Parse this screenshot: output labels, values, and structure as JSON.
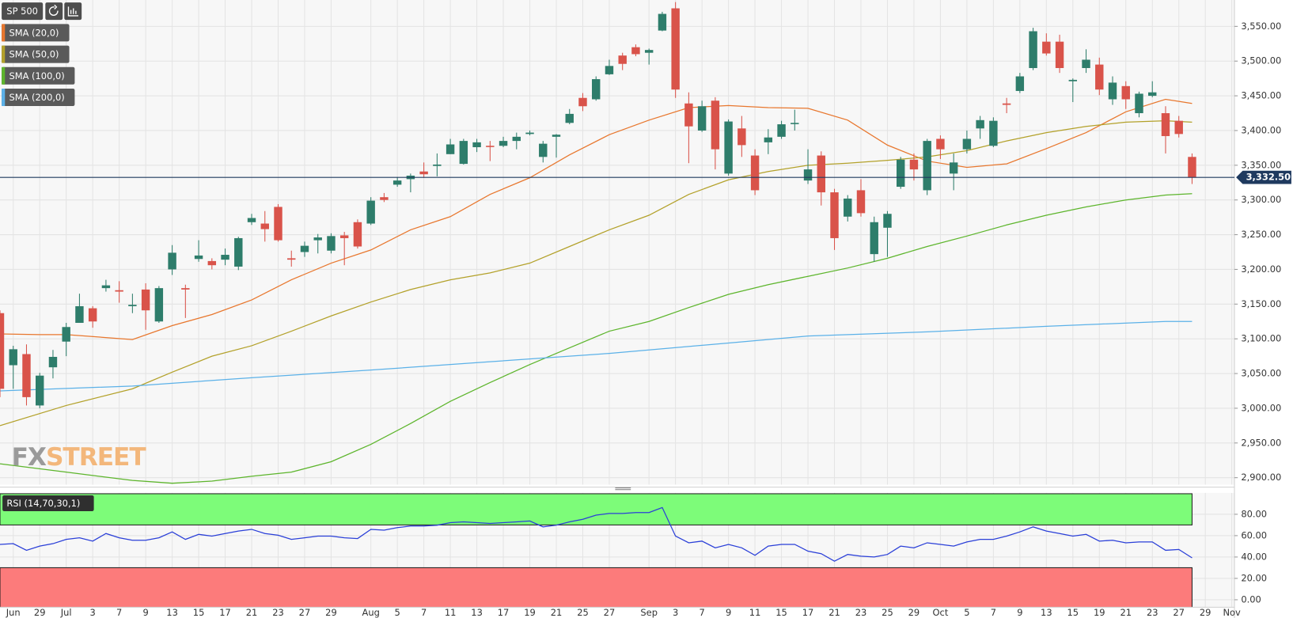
{
  "chart_data": [
    {
      "type": "candlestick",
      "title": "SP 500",
      "open": [
        3137,
        3062,
        3078,
        3004,
        3059,
        3096,
        3123,
        3144,
        3173,
        3170,
        3147,
        3171,
        3125,
        3200,
        3173,
        3215,
        3212,
        3214,
        3204,
        3268,
        3266,
        3290,
        3216,
        3225,
        3242,
        3227,
        3249,
        3268,
        3266,
        3304,
        3322,
        3330,
        3341,
        3349,
        3366,
        3352,
        3376,
        3378,
        3378,
        3385,
        3395,
        3362,
        3391,
        3411,
        3447,
        3445,
        3481,
        3508,
        3520,
        3512,
        3544,
        3576,
        3439,
        3400,
        3443,
        3338,
        3403,
        3364,
        3383,
        3391,
        3411,
        3328,
        3364,
        3311,
        3276,
        3314,
        3222,
        3260,
        3319,
        3358,
        3314,
        3388,
        3338,
        3373,
        3403,
        3378,
        3439,
        3457,
        3490,
        3528,
        3528,
        3471,
        3490,
        3495,
        3445,
        3464,
        3425,
        3450,
        3425,
        3414,
        3362
      ],
      "high": [
        3141,
        3090,
        3092,
        3051,
        3084,
        3123,
        3165,
        3147,
        3185,
        3183,
        3165,
        3180,
        3176,
        3235,
        3178,
        3242,
        3216,
        3230,
        3247,
        3280,
        3284,
        3294,
        3227,
        3240,
        3251,
        3252,
        3254,
        3272,
        3304,
        3310,
        3333,
        3338,
        3354,
        3367,
        3388,
        3388,
        3388,
        3385,
        3391,
        3397,
        3400,
        3385,
        3395,
        3431,
        3454,
        3478,
        3502,
        3512,
        3524,
        3518,
        3571,
        3585,
        3455,
        3443,
        3448,
        3416,
        3421,
        3373,
        3402,
        3414,
        3430,
        3373,
        3370,
        3316,
        3307,
        3330,
        3276,
        3284,
        3362,
        3367,
        3388,
        3393,
        3367,
        3400,
        3421,
        3419,
        3447,
        3483,
        3548,
        3540,
        3538,
        3475,
        3517,
        3505,
        3478,
        3471,
        3456,
        3471,
        3435,
        3421,
        3367
      ],
      "low": [
        3016,
        3028,
        3004,
        3000,
        3043,
        3075,
        3123,
        3116,
        3168,
        3152,
        3137,
        3113,
        3123,
        3192,
        3130,
        3211,
        3200,
        3206,
        3199,
        3264,
        3240,
        3240,
        3204,
        3218,
        3223,
        3223,
        3206,
        3230,
        3264,
        3297,
        3319,
        3311,
        3332,
        3334,
        3366,
        3351,
        3369,
        3356,
        3376,
        3373,
        3393,
        3354,
        3361,
        3409,
        3428,
        3443,
        3480,
        3487,
        3507,
        3495,
        3543,
        3447,
        3353,
        3398,
        3344,
        3335,
        3362,
        3307,
        3366,
        3388,
        3400,
        3323,
        3292,
        3228,
        3269,
        3276,
        3211,
        3218,
        3316,
        3328,
        3307,
        3359,
        3314,
        3367,
        3388,
        3376,
        3425,
        3454,
        3487,
        3508,
        3483,
        3441,
        3483,
        3451,
        3437,
        3431,
        3419,
        3448,
        3367,
        3390,
        3323
      ],
      "close": [
        3028,
        3085,
        3016,
        3047,
        3074,
        3117,
        3147,
        3125,
        3177,
        3168,
        3149,
        3141,
        3173,
        3224,
        3171,
        3220,
        3206,
        3221,
        3245,
        3274,
        3258,
        3242,
        3214,
        3234,
        3246,
        3248,
        3245,
        3233,
        3299,
        3300,
        3328,
        3335,
        3337,
        3351,
        3380,
        3385,
        3383,
        3377,
        3385,
        3391,
        3397,
        3381,
        3394,
        3424,
        3435,
        3474,
        3493,
        3496,
        3510,
        3516,
        3568,
        3459,
        3406,
        3435,
        3373,
        3413,
        3379,
        3314,
        3390,
        3409,
        3411,
        3344,
        3311,
        3245,
        3302,
        3281,
        3268,
        3280,
        3358,
        3344,
        3385,
        3373,
        3354,
        3388,
        3415,
        3414,
        3437,
        3478,
        3543,
        3511,
        3490,
        3473,
        3502,
        3459,
        3469,
        3445,
        3453,
        3455,
        3392,
        3395,
        3332.5
      ],
      "up_color": "#2e7d6b",
      "down_color": "#d9534a",
      "series": [
        {
          "name": "SMA (20,0)",
          "color": "#e8772e",
          "x": [
            0,
            3,
            5,
            10,
            13,
            16,
            19,
            22,
            25,
            28,
            31,
            34,
            37,
            40,
            43,
            46,
            49,
            52,
            55,
            58,
            61,
            64,
            67,
            70,
            73,
            76,
            79,
            82,
            85,
            88,
            90
          ],
          "values": [
            3107,
            3106,
            3106,
            3099,
            3119,
            3135,
            3156,
            3185,
            3209,
            3228,
            3257,
            3276,
            3308,
            3332,
            3365,
            3394,
            3415,
            3433,
            3436,
            3433,
            3432,
            3415,
            3379,
            3356,
            3347,
            3352,
            3374,
            3397,
            3427,
            3445,
            3439
          ]
        },
        {
          "name": "SMA (50,0)",
          "color": "#b3a12a",
          "x": [
            0,
            5,
            10,
            13,
            16,
            19,
            22,
            25,
            28,
            31,
            34,
            37,
            40,
            43,
            46,
            49,
            52,
            55,
            58,
            61,
            64,
            67,
            70,
            73,
            76,
            79,
            82,
            85,
            88,
            90
          ],
          "values": [
            2975,
            3004,
            3028,
            3052,
            3075,
            3090,
            3111,
            3133,
            3153,
            3171,
            3185,
            3195,
            3209,
            3233,
            3257,
            3278,
            3308,
            3329,
            3341,
            3350,
            3353,
            3357,
            3362,
            3371,
            3385,
            3397,
            3406,
            3412,
            3414,
            3412
          ]
        },
        {
          "name": "SMA (100,0)",
          "color": "#5db52c",
          "x": [
            0,
            5,
            10,
            13,
            16,
            19,
            22,
            25,
            28,
            31,
            34,
            37,
            40,
            43,
            46,
            49,
            52,
            55,
            58,
            61,
            64,
            67,
            70,
            73,
            76,
            79,
            82,
            85,
            88,
            90
          ],
          "values": [
            2920,
            2908,
            2896,
            2892,
            2895,
            2902,
            2908,
            2923,
            2948,
            2978,
            3010,
            3037,
            3063,
            3087,
            3111,
            3125,
            3145,
            3164,
            3178,
            3190,
            3202,
            3216,
            3233,
            3248,
            3264,
            3278,
            3290,
            3300,
            3307,
            3309
          ]
        },
        {
          "name": "SMA (200,0)",
          "color": "#5bb1e8",
          "x": [
            0,
            10,
            19,
            28,
            37,
            46,
            55,
            61,
            70,
            79,
            88,
            90
          ],
          "values": [
            3025,
            3032,
            3044,
            3055,
            3067,
            3079,
            3094,
            3104,
            3110,
            3118,
            3125,
            3125
          ]
        }
      ],
      "xlim": [
        0,
        93.2
      ],
      "xticks": [
        {
          "value": 1,
          "label": "Jun"
        },
        {
          "value": 3,
          "label": "29"
        },
        {
          "value": 5,
          "label": "Jul"
        },
        {
          "value": 7,
          "label": "3"
        },
        {
          "value": 9,
          "label": "7"
        },
        {
          "value": 11,
          "label": "9"
        },
        {
          "value": 13,
          "label": "13"
        },
        {
          "value": 15,
          "label": "15"
        },
        {
          "value": 17,
          "label": "17"
        },
        {
          "value": 19,
          "label": "21"
        },
        {
          "value": 21,
          "label": "23"
        },
        {
          "value": 23,
          "label": "27"
        },
        {
          "value": 25,
          "label": "29"
        },
        {
          "value": 28,
          "label": "Aug"
        },
        {
          "value": 30,
          "label": "5"
        },
        {
          "value": 32,
          "label": "7"
        },
        {
          "value": 34,
          "label": "11"
        },
        {
          "value": 36,
          "label": "13"
        },
        {
          "value": 38,
          "label": "17"
        },
        {
          "value": 40,
          "label": "19"
        },
        {
          "value": 42,
          "label": "21"
        },
        {
          "value": 44,
          "label": "25"
        },
        {
          "value": 46,
          "label": "27"
        },
        {
          "value": 49,
          "label": "Sep"
        },
        {
          "value": 51,
          "label": "3"
        },
        {
          "value": 53,
          "label": "7"
        },
        {
          "value": 55,
          "label": "9"
        },
        {
          "value": 57,
          "label": "11"
        },
        {
          "value": 59,
          "label": "15"
        },
        {
          "value": 61,
          "label": "17"
        },
        {
          "value": 63,
          "label": "21"
        },
        {
          "value": 65,
          "label": "23"
        },
        {
          "value": 67,
          "label": "25"
        },
        {
          "value": 69,
          "label": "29"
        },
        {
          "value": 71,
          "label": "Oct"
        },
        {
          "value": 73,
          "label": "5"
        },
        {
          "value": 75,
          "label": "7"
        },
        {
          "value": 77,
          "label": "9"
        },
        {
          "value": 79,
          "label": "13"
        },
        {
          "value": 81,
          "label": "15"
        },
        {
          "value": 83,
          "label": "19"
        },
        {
          "value": 85,
          "label": "21"
        },
        {
          "value": 87,
          "label": "23"
        },
        {
          "value": 89,
          "label": "27"
        },
        {
          "value": 91,
          "label": "29"
        },
        {
          "value": 93,
          "label": "Nov"
        }
      ],
      "ylim": [
        2890,
        3588
      ],
      "yticks": [
        {
          "value": 2900,
          "label": "2,900.00"
        },
        {
          "value": 2950,
          "label": "2,950.00"
        },
        {
          "value": 3000,
          "label": "3,000.00"
        },
        {
          "value": 3050,
          "label": "3,050.00"
        },
        {
          "value": 3100,
          "label": "3,100.00"
        },
        {
          "value": 3150,
          "label": "3,150.00"
        },
        {
          "value": 3200,
          "label": "3,200.00"
        },
        {
          "value": 3250,
          "label": "3,250.00"
        },
        {
          "value": 3300,
          "label": "3,300.00"
        },
        {
          "value": 3350,
          "label": "3,350.00"
        },
        {
          "value": 3400,
          "label": "3,400.00"
        },
        {
          "value": 3450,
          "label": "3,450.00"
        },
        {
          "value": 3500,
          "label": "3,500.00"
        },
        {
          "value": 3550,
          "label": "3,550.00"
        }
      ],
      "last_price": {
        "value": 3332.5,
        "label": "3,332.50"
      },
      "last_price_color": "#1f3a5f",
      "grid": true,
      "watermark": {
        "prefix": "FX",
        "suffix": "STREET"
      }
    },
    {
      "type": "line",
      "title": "RSI (14,70,30,1)",
      "color": "#2a3fd8",
      "values": [
        51.8,
        52.5,
        46.3,
        50.2,
        52.5,
        56.5,
        58.0,
        54.9,
        62.0,
        58.0,
        55.7,
        55.7,
        58.0,
        63.5,
        56.5,
        61.2,
        59.6,
        62.0,
        64.3,
        65.9,
        62.0,
        60.4,
        56.5,
        58.0,
        59.6,
        59.6,
        58.0,
        57.3,
        65.9,
        65.1,
        67.5,
        69.0,
        69.0,
        69.8,
        72.2,
        72.9,
        72.2,
        71.4,
        72.2,
        72.9,
        73.7,
        68.2,
        69.8,
        72.9,
        75.3,
        79.2,
        80.8,
        80.8,
        81.6,
        81.6,
        86.3,
        59.6,
        53.3,
        54.9,
        48.6,
        51.8,
        48.6,
        41.6,
        50.2,
        51.8,
        51.8,
        45.5,
        43.1,
        36.1,
        42.4,
        40.8,
        40.0,
        42.4,
        50.2,
        48.6,
        53.3,
        51.8,
        50.2,
        54.1,
        56.5,
        56.5,
        59.6,
        63.5,
        68.2,
        64.3,
        62.0,
        59.6,
        61.2,
        54.9,
        55.7,
        53.3,
        54.1,
        54.1,
        46.3,
        47.1,
        39.2
      ],
      "ylim": [
        -7,
        100
      ],
      "yticks": [
        {
          "value": 0,
          "label": "0.00"
        },
        {
          "value": 20,
          "label": "20.00"
        },
        {
          "value": 40,
          "label": "40.00"
        },
        {
          "value": 60,
          "label": "60.00"
        },
        {
          "value": 80,
          "label": "80.00"
        }
      ],
      "overbought": 70,
      "oversold": 30,
      "overbought_color": "#7dfc79",
      "oversold_color": "#fc7b7b",
      "grid": true
    }
  ]
}
